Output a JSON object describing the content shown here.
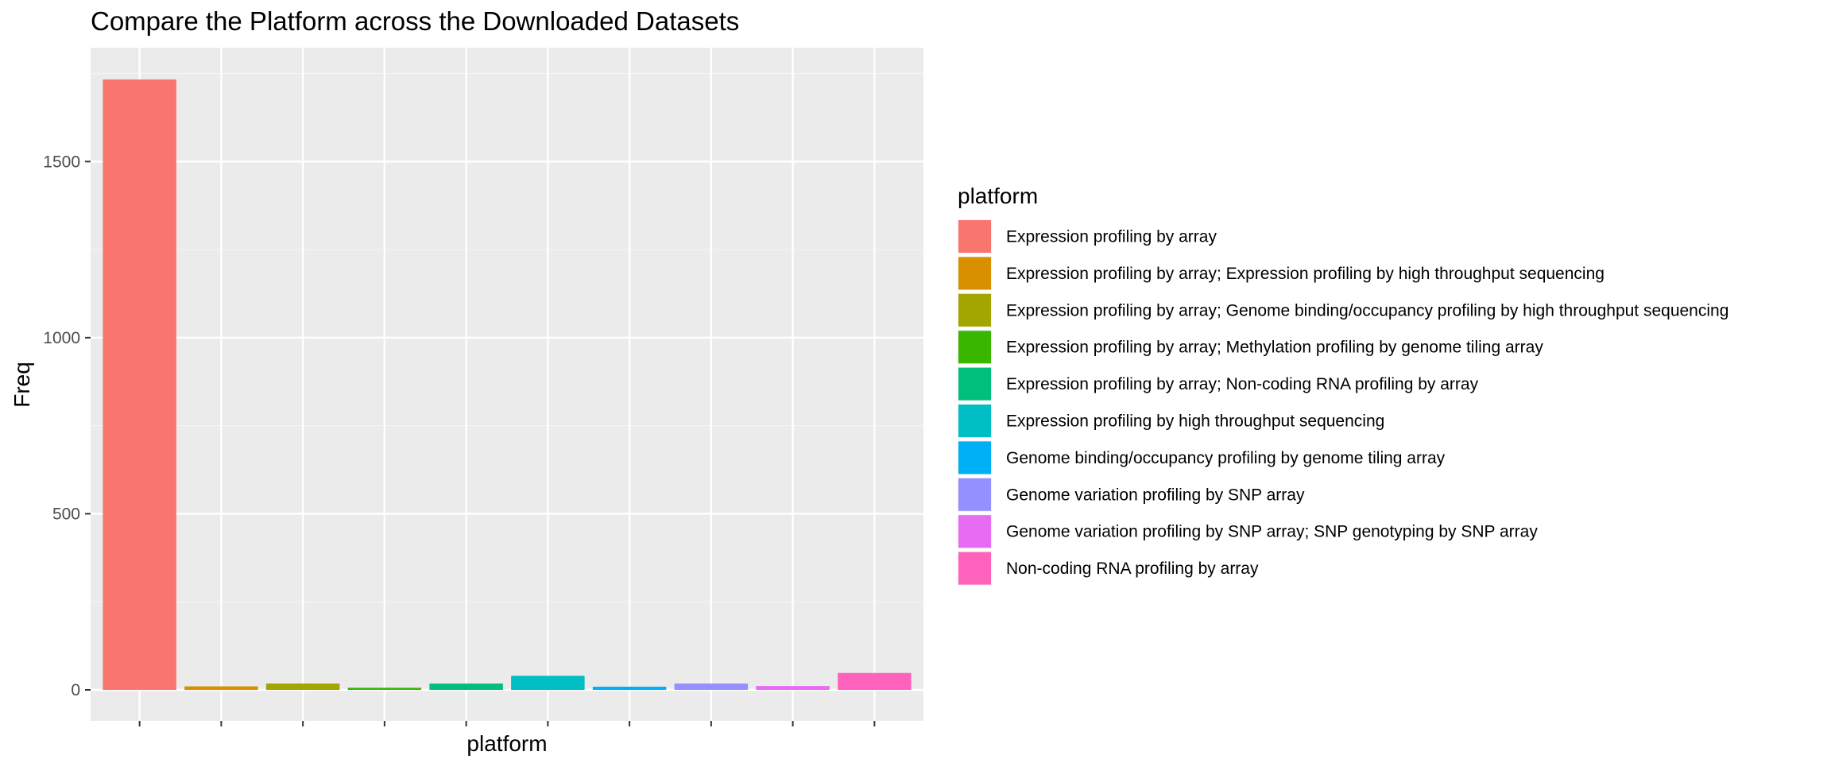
{
  "chart_data": {
    "type": "bar",
    "title": "Compare the Platform across the Downloaded Datasets",
    "xlabel": "platform",
    "ylabel": "Freq",
    "ylim": [
      0,
      1800
    ],
    "y_ticks": [
      0,
      500,
      1000,
      1500
    ],
    "grid": true,
    "legend": {
      "title": "platform",
      "placement": "right"
    },
    "categories": [
      "Expression profiling by array",
      "Expression profiling by array; Expression profiling by high throughput sequencing",
      "Expression profiling by array; Genome binding/occupancy profiling by high throughput sequencing",
      "Expression profiling by array; Methylation profiling by genome tiling array",
      "Expression profiling by array; Non-coding RNA profiling by array",
      "Expression profiling by high throughput sequencing",
      "Genome binding/occupancy profiling by genome tiling array",
      "Genome variation profiling by SNP array",
      "Genome variation profiling by SNP array; SNP genotyping by SNP array",
      "Non-coding RNA profiling by array"
    ],
    "values": [
      1733,
      10,
      18,
      6,
      18,
      40,
      9,
      18,
      11,
      48
    ],
    "colors": [
      "#F8766D",
      "#D89000",
      "#A3A500",
      "#39B600",
      "#00BF7D",
      "#00BFC4",
      "#00B0F6",
      "#9590FF",
      "#E76BF3",
      "#FF62BC"
    ]
  }
}
